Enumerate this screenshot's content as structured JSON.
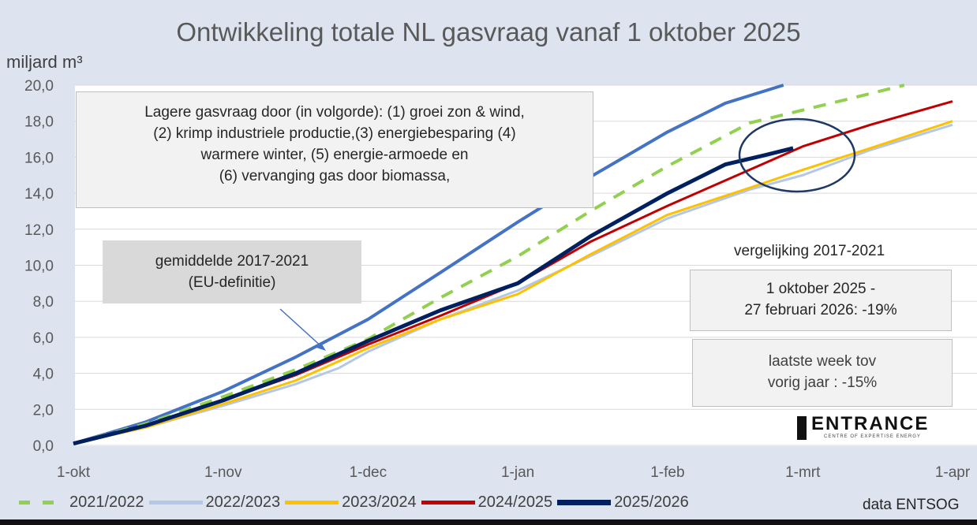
{
  "chart_data": {
    "type": "line",
    "title": "Ontwikkeling totale NL gasvraag vanaf 1 oktober 2025",
    "ylabel": "miljard m³",
    "ylim": [
      0,
      20
    ],
    "yticks": [
      "0,0",
      "2,0",
      "4,0",
      "6,0",
      "8,0",
      "10,0",
      "12,0",
      "14,0",
      "16,0",
      "18,0",
      "20,0"
    ],
    "xlim_days": [
      0,
      182
    ],
    "xticks": [
      {
        "label": "1-okt",
        "day": 0
      },
      {
        "label": "1-nov",
        "day": 31
      },
      {
        "label": "1-dec",
        "day": 61
      },
      {
        "label": "1-jan",
        "day": 92
      },
      {
        "label": "1-feb",
        "day": 123
      },
      {
        "label": "1-mrt",
        "day": 151
      },
      {
        "label": "1-apr",
        "day": 182
      }
    ],
    "series": [
      {
        "name": "gemiddelde 2017-2021",
        "color": "#4472c4",
        "width": 4,
        "dash": "",
        "points": [
          [
            0,
            0.1
          ],
          [
            15,
            1.3
          ],
          [
            31,
            3.0
          ],
          [
            46,
            4.9
          ],
          [
            61,
            7.0
          ],
          [
            76,
            9.6
          ],
          [
            92,
            12.4
          ],
          [
            107,
            14.9
          ],
          [
            123,
            17.4
          ],
          [
            135,
            19.0
          ],
          [
            147,
            20.0
          ]
        ]
      },
      {
        "name": "2021/2022",
        "color": "#92d050",
        "width": 4,
        "dash": "16 12",
        "points": [
          [
            0,
            0.1
          ],
          [
            15,
            1.2
          ],
          [
            31,
            2.7
          ],
          [
            46,
            4.2
          ],
          [
            61,
            5.9
          ],
          [
            76,
            8.2
          ],
          [
            92,
            10.5
          ],
          [
            107,
            13.0
          ],
          [
            123,
            15.5
          ],
          [
            140,
            17.9
          ],
          [
            160,
            19.2
          ],
          [
            172,
            20.0
          ]
        ]
      },
      {
        "name": "2022/2023",
        "color": "#b4c7e7",
        "width": 3,
        "dash": "",
        "points": [
          [
            0,
            0.1
          ],
          [
            15,
            1.0
          ],
          [
            31,
            2.2
          ],
          [
            46,
            3.4
          ],
          [
            55,
            4.3
          ],
          [
            61,
            5.2
          ],
          [
            76,
            7.0
          ],
          [
            92,
            8.6
          ],
          [
            107,
            10.5
          ],
          [
            123,
            12.6
          ],
          [
            140,
            14.2
          ],
          [
            151,
            15.0
          ],
          [
            165,
            16.4
          ],
          [
            182,
            17.8
          ]
        ]
      },
      {
        "name": "2023/2024",
        "color": "#ffc000",
        "width": 3,
        "dash": "",
        "points": [
          [
            0,
            0.1
          ],
          [
            15,
            1.0
          ],
          [
            31,
            2.3
          ],
          [
            46,
            3.6
          ],
          [
            61,
            5.4
          ],
          [
            76,
            7.0
          ],
          [
            92,
            8.4
          ],
          [
            107,
            10.6
          ],
          [
            123,
            12.8
          ],
          [
            140,
            14.3
          ],
          [
            151,
            15.3
          ],
          [
            165,
            16.5
          ],
          [
            182,
            18.0
          ]
        ]
      },
      {
        "name": "2024/2025",
        "color": "#c00000",
        "width": 3,
        "dash": "",
        "points": [
          [
            0,
            0.1
          ],
          [
            15,
            1.1
          ],
          [
            31,
            2.5
          ],
          [
            46,
            3.9
          ],
          [
            61,
            5.6
          ],
          [
            76,
            7.2
          ],
          [
            92,
            9.0
          ],
          [
            107,
            11.3
          ],
          [
            123,
            13.3
          ],
          [
            140,
            15.3
          ],
          [
            151,
            16.6
          ],
          [
            165,
            17.8
          ],
          [
            182,
            19.1
          ]
        ]
      },
      {
        "name": "2025/2026",
        "color": "#002060",
        "width": 5,
        "dash": "",
        "points": [
          [
            0,
            0.1
          ],
          [
            15,
            1.1
          ],
          [
            31,
            2.5
          ],
          [
            46,
            4.0
          ],
          [
            61,
            5.8
          ],
          [
            76,
            7.5
          ],
          [
            92,
            9.0
          ],
          [
            107,
            11.6
          ],
          [
            123,
            14.0
          ],
          [
            135,
            15.6
          ],
          [
            143,
            16.1
          ],
          [
            149,
            16.5
          ]
        ]
      }
    ],
    "legend": [
      "2021/2022",
      "2022/2023",
      "2023/2024",
      "2024/2025",
      "2025/2026"
    ],
    "legend_colors": [
      "#92d050",
      "#b4c7e7",
      "#ffc000",
      "#c00000",
      "#002060"
    ],
    "legend_placement": "bottom",
    "annotations": {
      "box1": [
        "Lagere gasvraag door (in volgorde): (1) groei zon & wind,",
        "(2) krimp industriele productie,(3) energiebesparing (4)",
        "warmere winter, (5) energie-armoede en",
        "(6) vervanging gas door biomassa,"
      ],
      "box2": [
        "gemiddelde 2017-2021",
        "(EU-definitie)"
      ],
      "vergelijking": "vergelijking 2017-2021",
      "box3": [
        "1 oktober 2025 -",
        "27 februari 2026: -19%"
      ],
      "box4": [
        "laatste week tov",
        "vorig jaar : -15%"
      ],
      "source": "data ENTSOG",
      "logo": "ENTRANCE",
      "logo_sub": "CENTRE OF EXPERTISE ENERGY"
    }
  }
}
